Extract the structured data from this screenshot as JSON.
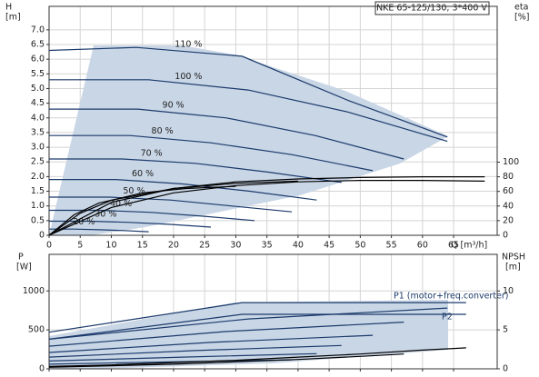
{
  "chart_data": [
    {
      "type": "line",
      "title": "NKE 65-125/130, 3*400 V",
      "ylabel": "H",
      "yunit": "[m]",
      "y2label": "eta",
      "y2unit": "[%]",
      "xlabel": "Q [m³/h]",
      "xlim": [
        0,
        72
      ],
      "xticks": [
        0,
        5,
        10,
        15,
        20,
        25,
        30,
        35,
        40,
        45,
        50,
        55,
        60,
        65
      ],
      "ylim": [
        0,
        7.8
      ],
      "yticks": [
        0,
        0.5,
        {
          "value": 1,
          "label": "1.0"
        },
        1.5,
        {
          "value": 2,
          "label": "2.0"
        },
        2.5,
        {
          "value": 3,
          "label": "3.0"
        },
        3.5,
        {
          "value": 4,
          "label": "4.0"
        },
        4.5,
        {
          "value": 5,
          "label": "5.0"
        },
        5.5,
        {
          "value": 6,
          "label": "6.0"
        },
        6.5,
        {
          "value": 7,
          "label": "7.0"
        }
      ],
      "y2lim": [
        0,
        313
      ],
      "y2ticks": [
        0,
        20,
        40,
        60,
        80,
        100
      ],
      "grid": true,
      "series": [
        {
          "name": "110 %",
          "color": "#1b3a6b",
          "x": [
            0,
            14,
            31,
            48,
            64
          ],
          "values": [
            6.3,
            6.4,
            6.1,
            4.6,
            3.35
          ]
        },
        {
          "name": "100 %",
          "color": "#1b3a6b",
          "x": [
            0,
            16,
            32,
            48,
            64
          ],
          "values": [
            5.3,
            5.3,
            4.95,
            4.2,
            3.2
          ]
        },
        {
          "name": "90 %",
          "color": "#1b3a6b",
          "x": [
            0,
            14.25,
            28.5,
            42.75,
            57
          ],
          "values": [
            4.3,
            4.3,
            4.0,
            3.4,
            2.6
          ]
        },
        {
          "name": "80 %",
          "color": "#1b3a6b",
          "x": [
            0,
            13,
            26,
            39,
            52
          ],
          "values": [
            3.4,
            3.4,
            3.15,
            2.75,
            2.2
          ]
        },
        {
          "name": "70 %",
          "color": "#1b3a6b",
          "x": [
            0,
            11.75,
            23.5,
            35.25,
            47
          ],
          "values": [
            2.6,
            2.6,
            2.45,
            2.15,
            1.8
          ]
        },
        {
          "name": "60 %",
          "color": "#1b3a6b",
          "x": [
            0,
            10.75,
            21.5,
            32.25,
            43
          ],
          "values": [
            1.9,
            1.9,
            1.75,
            1.5,
            1.2
          ]
        },
        {
          "name": "50 %",
          "color": "#1b3a6b",
          "x": [
            0,
            9.75,
            19.5,
            29.25,
            39
          ],
          "values": [
            1.3,
            1.3,
            1.2,
            1.0,
            0.8
          ]
        },
        {
          "name": "40 %",
          "color": "#1b3a6b",
          "x": [
            0,
            8.25,
            16.5,
            24.75,
            33
          ],
          "values": [
            0.85,
            0.85,
            0.78,
            0.65,
            0.5
          ]
        },
        {
          "name": "30 %",
          "color": "#1b3a6b",
          "x": [
            0,
            6.5,
            13,
            19.5,
            26
          ],
          "values": [
            0.48,
            0.48,
            0.44,
            0.37,
            0.28
          ]
        },
        {
          "name": "20 %",
          "color": "#1b3a6b",
          "x": [
            0,
            4,
            8,
            12,
            16
          ],
          "values": [
            0.21,
            0.21,
            0.19,
            0.16,
            0.12
          ]
        },
        {
          "color": "#000000",
          "axis": "y2",
          "x": [
            0,
            10,
            20,
            30,
            40,
            50,
            60,
            70
          ],
          "values": [
            0,
            45,
            64,
            73,
            77,
            79,
            80,
            80
          ]
        },
        {
          "color": "#000000",
          "axis": "y2",
          "x": [
            0,
            10,
            20,
            30,
            40,
            50,
            60,
            70
          ],
          "values": [
            0,
            38,
            58,
            68,
            73,
            75,
            75,
            74
          ]
        },
        {
          "color": "#000000",
          "axis": "y2",
          "x": [
            0,
            5,
            10,
            20,
            30,
            40
          ],
          "values": [
            0,
            30,
            48,
            64,
            71,
            74
          ]
        },
        {
          "color": "#000000",
          "axis": "y2",
          "x": [
            0,
            4,
            8,
            15,
            22,
            30
          ],
          "values": [
            0,
            28,
            44,
            58,
            64,
            67
          ]
        }
      ]
    },
    {
      "type": "line",
      "ylabel": "P",
      "yunit": "[W]",
      "y2label": "NPSH",
      "y2unit": "[m]",
      "xlim": [
        0,
        72
      ],
      "xticks": [
        0,
        5,
        10,
        15,
        20,
        25,
        30,
        35,
        40,
        45,
        50,
        55,
        60,
        65
      ],
      "ylim": [
        0,
        1470
      ],
      "yticks": [
        0,
        500,
        1000
      ],
      "y2lim": [
        0,
        14.7
      ],
      "y2ticks": [
        0,
        5,
        10
      ],
      "grid": true,
      "annotations": [
        "P1 (motor+freq.converter)",
        "P2"
      ],
      "series": [
        {
          "color": "#1b3a6b",
          "x": [
            0,
            31,
            67
          ],
          "values": [
            470,
            850,
            850
          ]
        },
        {
          "color": "#1b3a6b",
          "x": [
            0,
            32,
            64
          ],
          "values": [
            380,
            640,
            780
          ]
        },
        {
          "color": "#1b3a6b",
          "x": [
            0,
            28.5,
            57
          ],
          "values": [
            290,
            480,
            600
          ]
        },
        {
          "color": "#1b3a6b",
          "x": [
            0,
            26,
            52
          ],
          "values": [
            210,
            340,
            430
          ]
        },
        {
          "color": "#1b3a6b",
          "x": [
            0,
            23.5,
            47
          ],
          "values": [
            150,
            235,
            300
          ]
        },
        {
          "color": "#1b3a6b",
          "x": [
            0,
            21.5,
            43
          ],
          "values": [
            100,
            150,
            195
          ]
        },
        {
          "color": "#1b3a6b",
          "x": [
            0,
            19.5,
            39
          ],
          "values": [
            60,
            90,
            115
          ]
        },
        {
          "color": "#1b3a6b",
          "x": [
            0,
            31,
            67
          ],
          "values": [
            380,
            700,
            700
          ]
        },
        {
          "color": "#000000",
          "axis": "y2",
          "x": [
            0,
            10,
            20,
            30,
            40,
            50,
            60,
            67
          ],
          "values": [
            0.3,
            0.5,
            0.8,
            1.1,
            1.5,
            1.9,
            2.4,
            2.7
          ]
        },
        {
          "color": "#000000",
          "axis": "y2",
          "x": [
            0,
            10,
            20,
            30,
            40,
            50,
            57
          ],
          "values": [
            0.2,
            0.4,
            0.6,
            0.9,
            1.2,
            1.6,
            1.9
          ]
        }
      ]
    }
  ]
}
